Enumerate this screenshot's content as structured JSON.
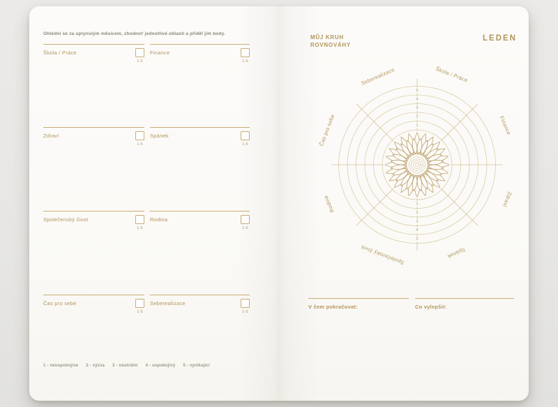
{
  "page": {
    "left": {
      "instruction": "Ohlédni se za uplynulým měsícem, zhodnoť jednotlivé oblasti a přiděl jim body.",
      "scale_hint": "1-5",
      "items": [
        {
          "label": "Škola / Práce"
        },
        {
          "label": "Finance"
        },
        {
          "label": "Zdraví"
        },
        {
          "label": "Spánek"
        },
        {
          "label": "Společenský život"
        },
        {
          "label": "Rodina"
        },
        {
          "label": "Čas pro sebe"
        },
        {
          "label": "Seberealizace"
        }
      ],
      "legend": [
        "1 - neuspokojivé",
        "2 - výzva",
        "3 - neutrální",
        "4 - uspokojivý",
        "5 - vynikající"
      ]
    },
    "right": {
      "title_line1": "MŮJ KRUH",
      "title_line2": "ROVNOVÁHY",
      "month": "LEDEN",
      "fields": [
        {
          "label": "V čem pokračovat:"
        },
        {
          "label": "Co vylepšit:"
        }
      ]
    }
  },
  "chart_data": {
    "type": "radar",
    "title": "MŮJ KRUH ROVNOVÁHY",
    "categories": [
      "Seberealizace",
      "Škola / Práce",
      "Finance",
      "Zdraví",
      "Spánek",
      "Společenský život",
      "Rodina",
      "Čas pro sebe"
    ],
    "scale": [
      1,
      2,
      3,
      4,
      5
    ],
    "values": [],
    "rings": 6,
    "legend_position": "none",
    "center_illustration": "sunflower"
  },
  "colors": {
    "accent_gold": "#b2955c",
    "rule_gold": "#c9ad74",
    "ring_line": "#dccda7",
    "axis_line": "#d2c29a",
    "muted_text": "#8b8577",
    "legend_text": "#9b958a",
    "page_background": "#fbfaf7",
    "backdrop": "#e8e7e5",
    "flower_line": "#b6975c"
  }
}
